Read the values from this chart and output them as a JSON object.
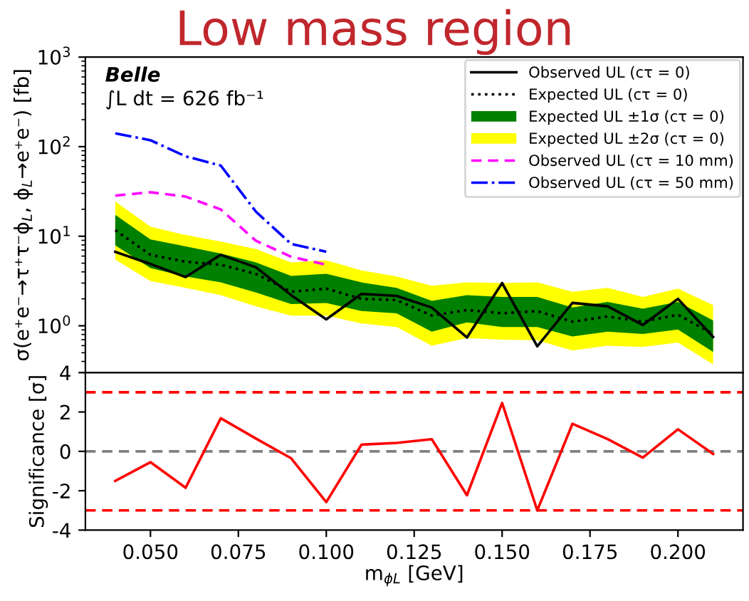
{
  "chart_data": [
    {
      "type": "line",
      "title": "Low mass region",
      "ylabel": "σ(e⁺e⁻→τ⁺τ⁻ϕ$_{L}$, ϕ$_{L}$→e⁺e⁻) [fb]",
      "annotations": [
        "Belle",
        "∫L dt = 626 fb⁻¹"
      ],
      "x": [
        0.04,
        0.05,
        0.06,
        0.07,
        0.08,
        0.09,
        0.1,
        0.11,
        0.12,
        0.13,
        0.14,
        0.15,
        0.16,
        0.17,
        0.18,
        0.19,
        0.2,
        0.21
      ],
      "series": [
        {
          "name": "Observed UL (cτ = 0)",
          "color": "#000000",
          "line_style": "solid",
          "values": [
            6.7,
            4.9,
            3.5,
            6.2,
            4.5,
            2.2,
            1.18,
            2.27,
            2.16,
            1.6,
            0.74,
            3.0,
            0.59,
            1.8,
            1.65,
            1.02,
            2.0,
            0.75
          ]
        },
        {
          "name": "Expected UL (cτ = 0)",
          "color": "#000000",
          "line_style": "dotted",
          "values": [
            11.7,
            6.2,
            5.2,
            4.8,
            3.8,
            2.4,
            2.6,
            2.0,
            1.94,
            1.3,
            1.5,
            1.38,
            1.46,
            1.11,
            1.27,
            1.11,
            1.33,
            0.81
          ]
        },
        {
          "name": "Expected UL ±1σ (cτ = 0)",
          "type": "area",
          "color": "#008000",
          "values": [
            null,
            null,
            null,
            null,
            null,
            null,
            null,
            null,
            null,
            null,
            null,
            null,
            null,
            null,
            null,
            null,
            null,
            null
          ],
          "lower": [
            7.9,
            4.4,
            3.55,
            3.05,
            2.35,
            1.75,
            1.8,
            1.46,
            1.38,
            0.86,
            1.09,
            0.97,
            0.97,
            0.76,
            0.86,
            0.81,
            0.91,
            0.51
          ],
          "upper": [
            17.3,
            9.2,
            7.7,
            6.4,
            5.1,
            3.6,
            3.8,
            3.05,
            2.65,
            1.9,
            2.2,
            2.1,
            2.1,
            1.6,
            1.85,
            1.55,
            1.85,
            1.15
          ]
        },
        {
          "name": "Expected UL ±2σ (cτ = 0)",
          "type": "area",
          "color": "#ffff00",
          "values": [
            null,
            null,
            null,
            null,
            null,
            null,
            null,
            null,
            null,
            null,
            null,
            null,
            null,
            null,
            null,
            null,
            null,
            null
          ],
          "lower": [
            5.5,
            3.16,
            2.65,
            2.2,
            1.65,
            1.3,
            1.3,
            1.06,
            0.97,
            0.6,
            0.73,
            0.7,
            0.69,
            0.53,
            0.6,
            0.58,
            0.65,
            0.37
          ],
          "upper": [
            24.4,
            12.8,
            10.3,
            8.7,
            7.2,
            5.1,
            5.4,
            4.15,
            3.55,
            2.8,
            3.05,
            3.0,
            3.05,
            2.4,
            2.65,
            2.1,
            2.6,
            1.7
          ]
        },
        {
          "name": "Observed UL (cτ = 10 mm)",
          "color": "#ff00ff",
          "line_style": "dashed",
          "x": [
            0.04,
            0.05,
            0.06,
            0.07,
            0.08,
            0.09,
            0.1
          ],
          "values": [
            28.4,
            31,
            27.7,
            19.9,
            8.9,
            5.9,
            4.8
          ]
        },
        {
          "name": "Observed UL (cτ = 50 mm)",
          "color": "#0000ff",
          "line_style": "dashdot",
          "x": [
            0.04,
            0.05,
            0.06,
            0.07,
            0.08,
            0.09,
            0.1
          ],
          "values": [
            141,
            118,
            78,
            61.5,
            18.8,
            8.2,
            6.7
          ]
        }
      ],
      "log": "y",
      "xlim": [
        0.0315,
        0.2185
      ],
      "ylim": [
        0.3,
        1000
      ],
      "yticks": [
        {
          "value": 1,
          "label": "10$^{0}$"
        },
        {
          "value": 10,
          "label": "10$^{1}$"
        },
        {
          "value": 100,
          "label": "10$^{2}$"
        },
        {
          "value": 1000,
          "label": "10$^{3}$"
        }
      ],
      "tick_labels": "y",
      "legend": "top right",
      "grid": false
    },
    {
      "type": "line",
      "xlabel": "m$_{ϕL}$ [GeV]",
      "ylabel": "Significance [σ]",
      "x": [
        0.04,
        0.05,
        0.06,
        0.07,
        0.08,
        0.09,
        0.1,
        0.11,
        0.12,
        0.13,
        0.14,
        0.15,
        0.16,
        0.17,
        0.18,
        0.19,
        0.2,
        0.21
      ],
      "series": [
        {
          "color": "#ff0000",
          "line_style": "solid",
          "values": [
            -1.5,
            -0.55,
            -1.85,
            1.68,
            0.65,
            -0.35,
            -2.58,
            0.34,
            0.43,
            0.62,
            -2.23,
            2.46,
            -3.0,
            1.4,
            0.62,
            -0.32,
            1.12,
            -0.13
          ]
        }
      ],
      "ref_lines": [
        {
          "axis": "y",
          "value": 3,
          "color": "#ff0000",
          "line_style": "dashed"
        },
        {
          "axis": "y",
          "value": -3,
          "color": "#ff0000",
          "line_style": "dashed"
        },
        {
          "axis": "y",
          "value": 0,
          "color": "#808080",
          "line_style": "dashed"
        }
      ],
      "xlim": [
        0.0315,
        0.2185
      ],
      "xticks": [
        {
          "value": 0.05,
          "label": "0.050"
        },
        {
          "value": 0.075,
          "label": "0.075"
        },
        {
          "value": 0.1,
          "label": "0.100"
        },
        {
          "value": 0.125,
          "label": "0.125"
        },
        {
          "value": 0.15,
          "label": "0.150"
        },
        {
          "value": 0.175,
          "label": "0.175"
        },
        {
          "value": 0.2,
          "label": "0.200"
        }
      ],
      "ylim": [
        -4,
        4
      ],
      "yticks": [
        -4,
        -2,
        0,
        2,
        4
      ],
      "grid": false
    }
  ]
}
